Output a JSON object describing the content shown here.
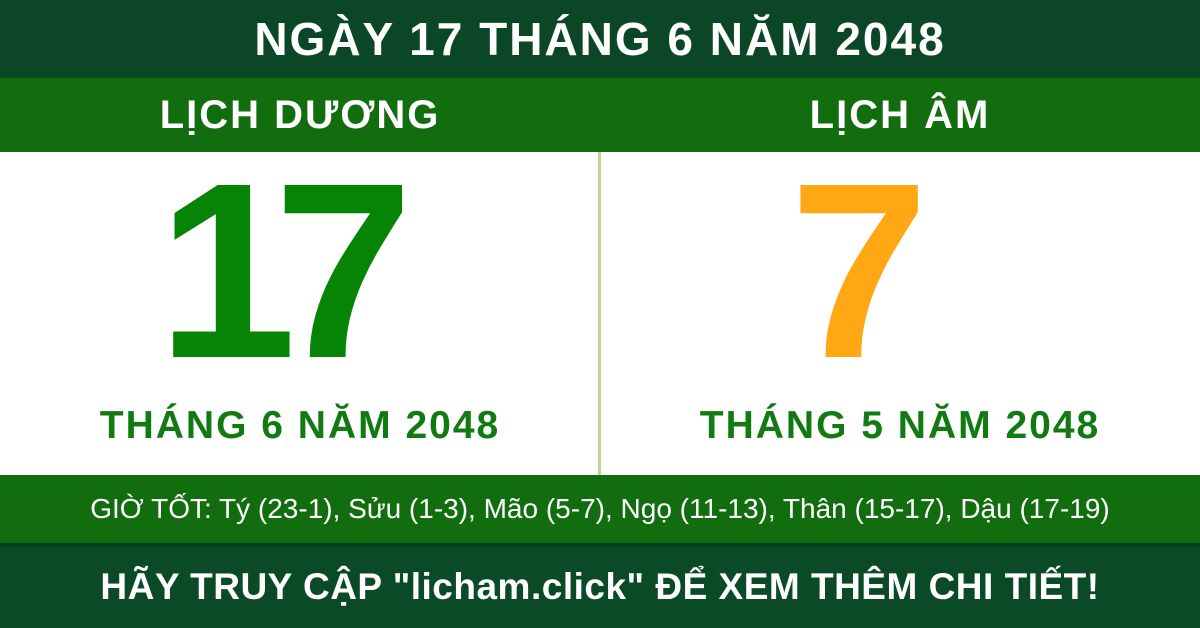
{
  "header": {
    "title": "NGÀY 17 THÁNG 6 NĂM 2048"
  },
  "calendar": {
    "solar": {
      "label": "LỊCH DƯƠNG",
      "day": "17",
      "month_year": "THÁNG 6 NĂM 2048"
    },
    "lunar": {
      "label": "LỊCH ÂM",
      "day": "7",
      "month_year": "THÁNG 5 NĂM 2048"
    }
  },
  "good_hours": {
    "text": "GIỜ TỐT: Tý (23-1), Sửu (1-3), Mão (5-7), Ngọ (11-13), Thân (15-17), Dậu (17-19)"
  },
  "footer": {
    "text": "HÃY TRUY CẬP \"licham.click\" ĐỂ XEM THÊM CHI TIẾT!"
  },
  "colors": {
    "header_bg": "#0B4627",
    "labels_bar_bg": "#116D0E",
    "good_hours_bg": "#116D0E",
    "footer_bg": "#0A4A26",
    "days_area_bg": "#FFFFFF",
    "divider": "#BCD98C",
    "solar_day_text": "#068406",
    "lunar_day_text": "#FFA813",
    "month_year_text": "#127A12",
    "bar_text": "#FFFFFF"
  }
}
